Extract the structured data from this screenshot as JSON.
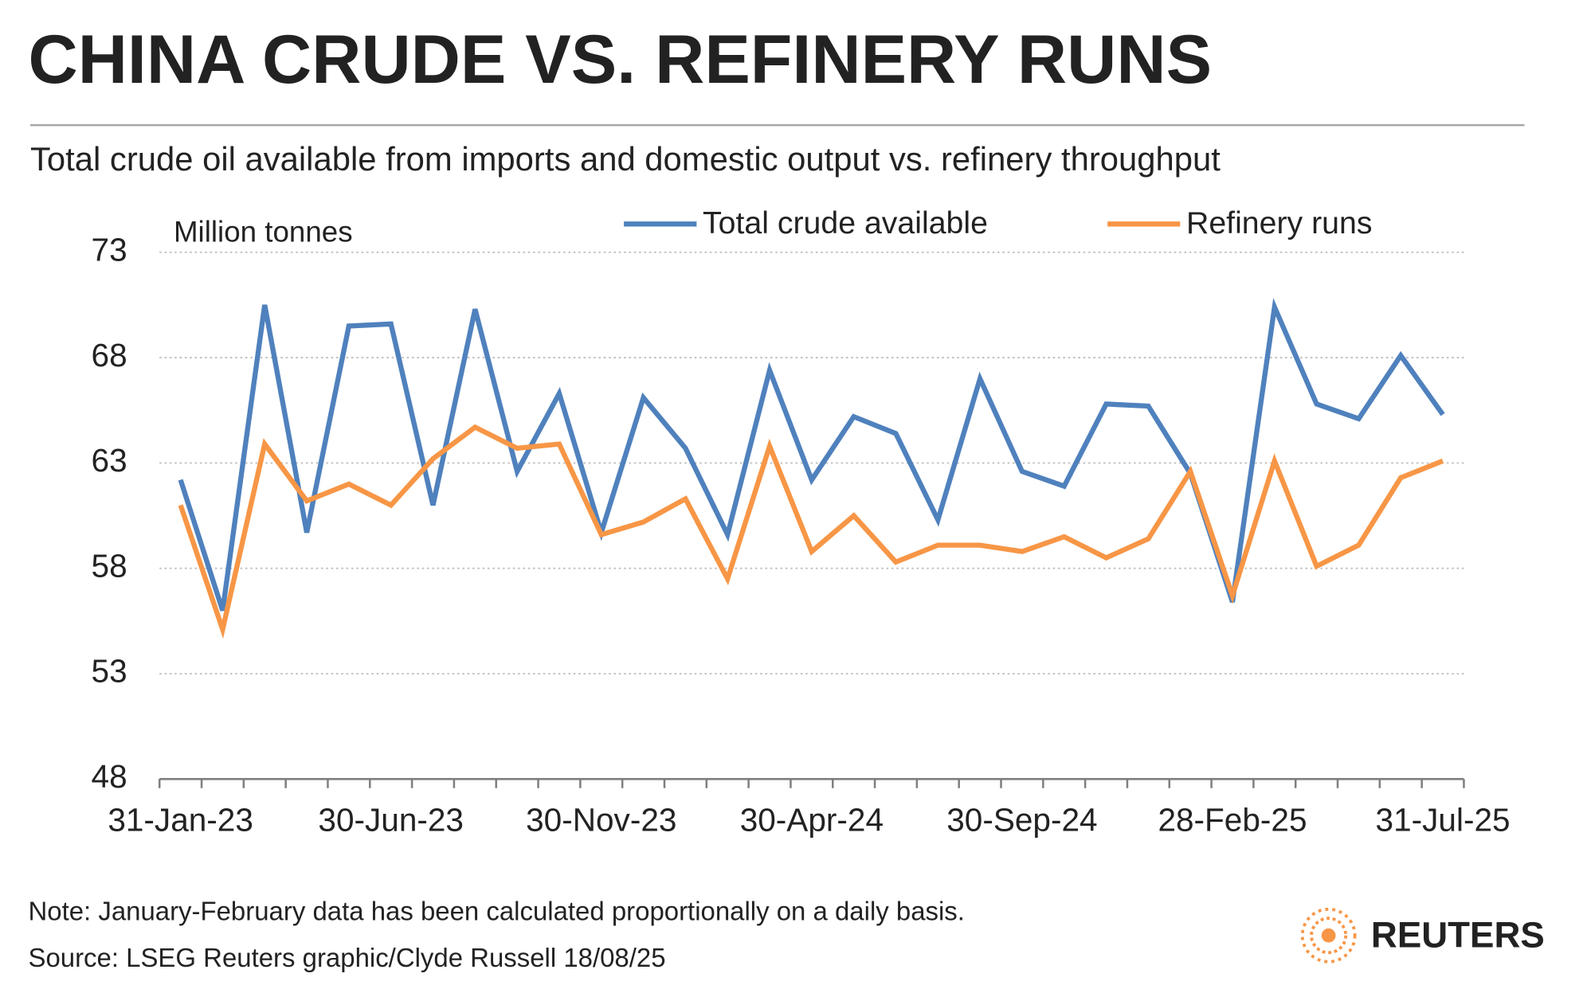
{
  "chart_data": {
    "type": "line",
    "title": "CHINA CRUDE VS. REFINERY RUNS",
    "subtitle": "Total crude oil available from imports and domestic output vs. refinery throughput",
    "y_label": "Million tonnes",
    "categories": [
      "31-Jan-23",
      null,
      null,
      null,
      null,
      "30-Jun-23",
      null,
      null,
      null,
      null,
      "30-Nov-23",
      null,
      null,
      null,
      null,
      "30-Apr-24",
      null,
      null,
      null,
      null,
      "30-Sep-24",
      null,
      null,
      null,
      null,
      "28-Feb-25",
      null,
      null,
      null,
      null,
      "31-Jul-25"
    ],
    "series": [
      {
        "name": "Total crude available",
        "color": "#4f81bd",
        "values": [
          62.2,
          56.0,
          70.5,
          59.7,
          69.5,
          69.6,
          61.0,
          70.3,
          62.6,
          66.3,
          59.7,
          66.1,
          63.7,
          59.6,
          67.4,
          62.2,
          65.2,
          64.4,
          60.3,
          67.0,
          62.6,
          61.9,
          65.8,
          65.7,
          62.5,
          56.4,
          70.4,
          65.8,
          65.1,
          68.1,
          65.3
        ]
      },
      {
        "name": "Refinery runs",
        "color": "#f79646",
        "values": [
          61.0,
          55.1,
          63.9,
          61.2,
          62.0,
          61.0,
          63.2,
          64.7,
          63.7,
          63.9,
          59.6,
          60.2,
          61.3,
          57.5,
          63.8,
          58.8,
          60.5,
          58.3,
          59.1,
          59.1,
          58.8,
          59.5,
          58.5,
          59.4,
          62.6,
          56.7,
          63.1,
          58.1,
          59.1,
          62.3,
          63.1
        ]
      }
    ],
    "ylim": [
      48,
      73
    ],
    "yticks": [
      48,
      53,
      58,
      63,
      68,
      73
    ],
    "grid": true,
    "legend": "top",
    "note": "Note: January-February data has been calculated proportionally on a daily basis.",
    "source": "Source: LSEG    Reuters graphic/Clyde Russell 18/08/25",
    "logo": "REUTERS"
  }
}
